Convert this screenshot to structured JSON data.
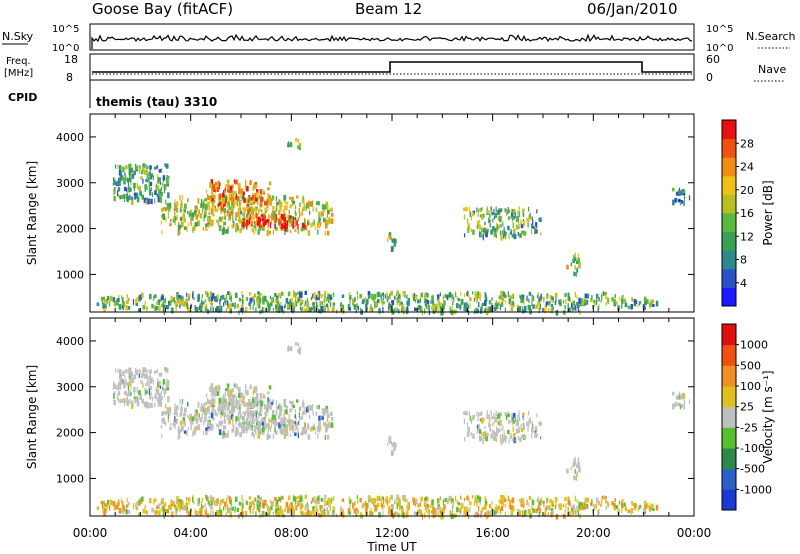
{
  "header": {
    "station": "Goose Bay (fitACF)",
    "beam": "Beam 12",
    "date": "06/Jan/2010"
  },
  "panels": {
    "nsky": {
      "left_label": "N.Sky",
      "right_label": "N.Search",
      "left_ticks": [
        "10^5",
        "10^0"
      ],
      "right_ticks": [
        "10^5",
        "10^0"
      ]
    },
    "freq": {
      "left_label_line1": "Freq.",
      "left_label_line2": "[MHz]",
      "right_label": "Nave",
      "left_ticks": [
        "18",
        "8"
      ],
      "right_ticks": [
        "60",
        "0"
      ]
    },
    "cpid": {
      "label": "CPID",
      "text": "themis (tau) 3310"
    }
  },
  "colors": {
    "power": [
      "#1a1aff",
      "#2a52c8",
      "#2e8a8a",
      "#3aa056",
      "#58b840",
      "#b8c020",
      "#f0c018",
      "#f08c10",
      "#f05010",
      "#e81010"
    ],
    "velocity": [
      "#1a3ad0",
      "#2a60c8",
      "#2e8a48",
      "#58c030",
      "#c0c0c0",
      "#e0c020",
      "#f09020",
      "#f05010",
      "#e01010"
    ]
  },
  "chart_data": [
    {
      "type": "heatmap",
      "title": "Power",
      "xlabel": "",
      "ylabel": "Slant Range [km]",
      "x_ticks": [
        "00:00",
        "04:00",
        "08:00",
        "12:00",
        "16:00",
        "20:00",
        "00:00"
      ],
      "y_ticks": [
        1000,
        2000,
        3000,
        4000
      ],
      "xlim_hours": [
        0,
        24
      ],
      "ylim_km": [
        180,
        4500
      ],
      "colorbar": {
        "label": "Power [dB]",
        "ticks": [
          4,
          8,
          12,
          16,
          20,
          24,
          28
        ]
      },
      "echo_regions": [
        {
          "t": [
            0.9,
            3.1
          ],
          "r": [
            2600,
            3450
          ],
          "level": 0.35
        },
        {
          "t": [
            2.8,
            9.6
          ],
          "r": [
            1950,
            2750
          ],
          "level": 0.55
        },
        {
          "t": [
            4.6,
            7.2
          ],
          "r": [
            2400,
            3100
          ],
          "level": 0.75
        },
        {
          "t": [
            6.0,
            8.6
          ],
          "r": [
            2050,
            2350
          ],
          "level": 0.95
        },
        {
          "t": [
            7.8,
            8.3
          ],
          "r": [
            3750,
            4000
          ],
          "level": 0.5
        },
        {
          "t": [
            11.8,
            12.1
          ],
          "r": [
            1600,
            2000
          ],
          "level": 0.5
        },
        {
          "t": [
            14.8,
            17.9
          ],
          "r": [
            1850,
            2500
          ],
          "level": 0.4
        },
        {
          "t": [
            18.9,
            19.5
          ],
          "r": [
            1050,
            1500
          ],
          "level": 0.5
        },
        {
          "t": [
            23.1,
            23.8
          ],
          "r": [
            2550,
            2900
          ],
          "level": 0.3
        },
        {
          "t": [
            0.2,
            22.5
          ],
          "r": [
            220,
            650
          ],
          "level": 0.4
        }
      ]
    },
    {
      "type": "heatmap",
      "title": "Velocity",
      "xlabel": "Time UT",
      "ylabel": "Slant Range [km]",
      "x_ticks": [
        "00:00",
        "04:00",
        "08:00",
        "12:00",
        "16:00",
        "20:00",
        "00:00"
      ],
      "y_ticks": [
        1000,
        2000,
        3000,
        4000
      ],
      "xlim_hours": [
        0,
        24
      ],
      "ylim_km": [
        180,
        4500
      ],
      "colorbar": {
        "label": "Velocity [m s⁻¹]",
        "ticks": [
          1000,
          500,
          100,
          25,
          -25,
          -100,
          -500,
          -1000
        ]
      }
    }
  ]
}
